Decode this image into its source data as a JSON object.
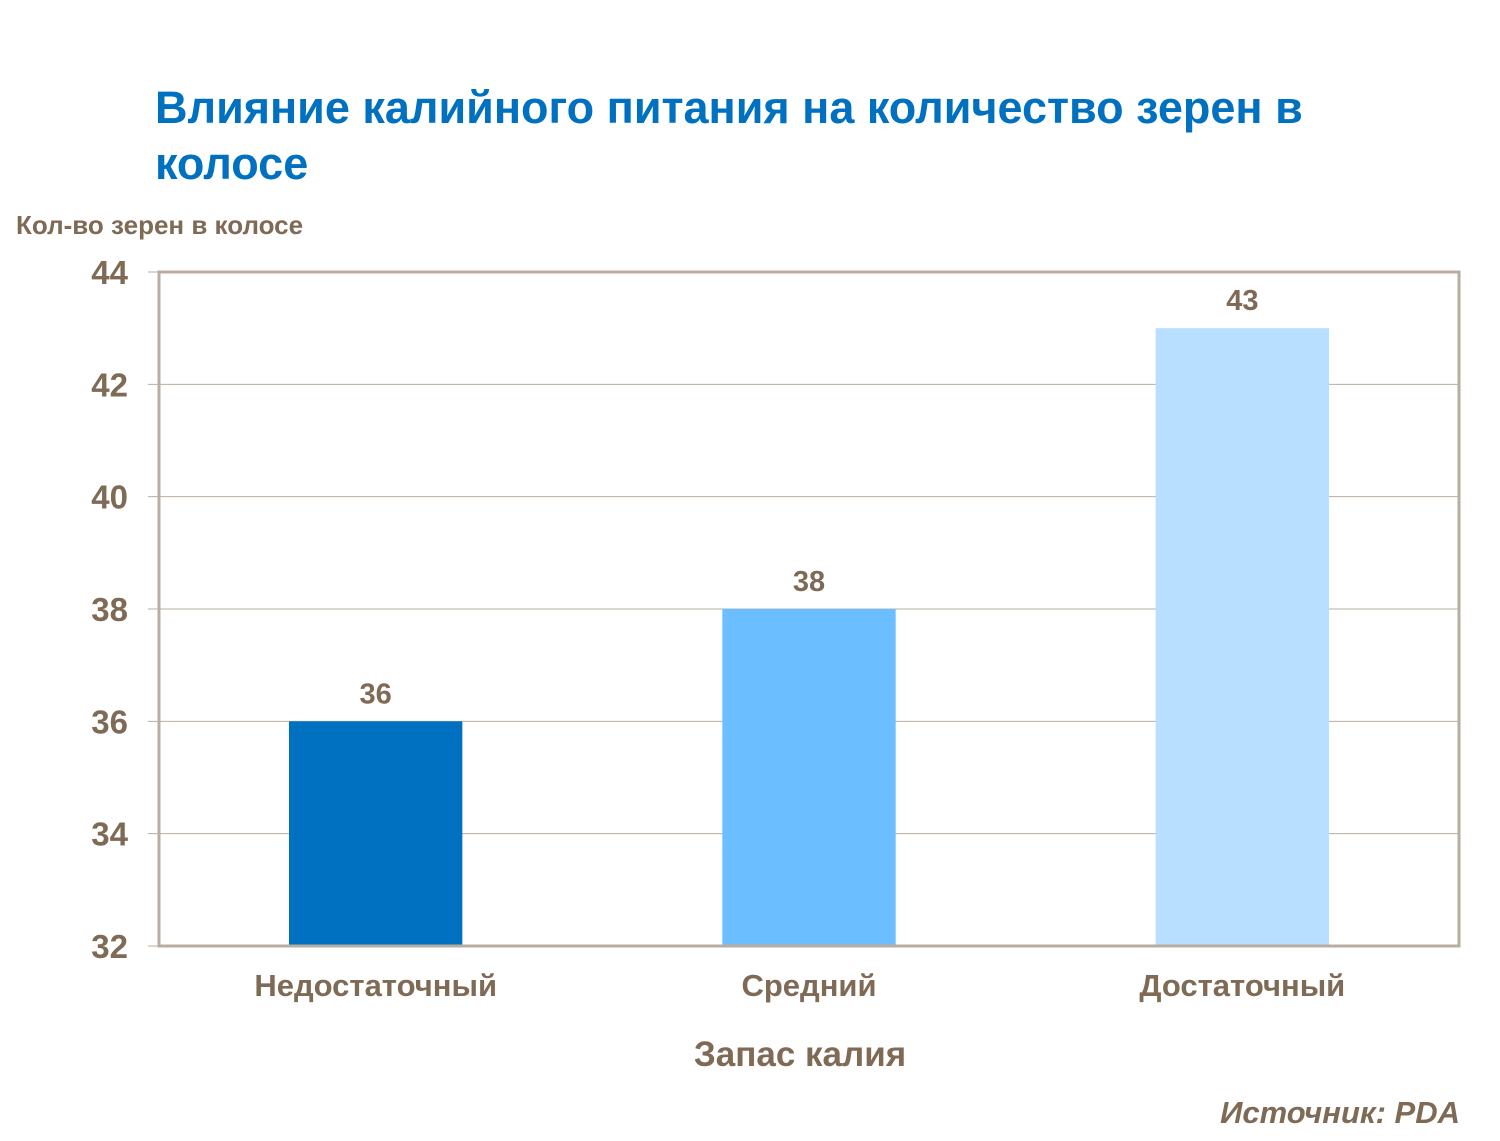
{
  "chart_data": {
    "type": "bar",
    "title": "Влияние калийного питания на количество зерен в колосе",
    "ylabel": "Кол-во зерен в колосе",
    "xlabel": "Запас калия",
    "categories": [
      "Недостаточный",
      "Средний",
      "Достаточный"
    ],
    "values": [
      36,
      38,
      43
    ],
    "data_labels": [
      "36",
      "38",
      "43"
    ],
    "bar_colors": [
      "#0070c0",
      "#6bbeff",
      "#b8dfff"
    ],
    "ylim": [
      32,
      44
    ],
    "yticks": [
      32,
      34,
      36,
      38,
      40,
      42,
      44
    ],
    "grid": true,
    "legend": "none",
    "source": "Источник: PDA"
  },
  "colors": {
    "title": "#0070c0",
    "text": "#7f6a55",
    "axis": "#b8ada0"
  }
}
